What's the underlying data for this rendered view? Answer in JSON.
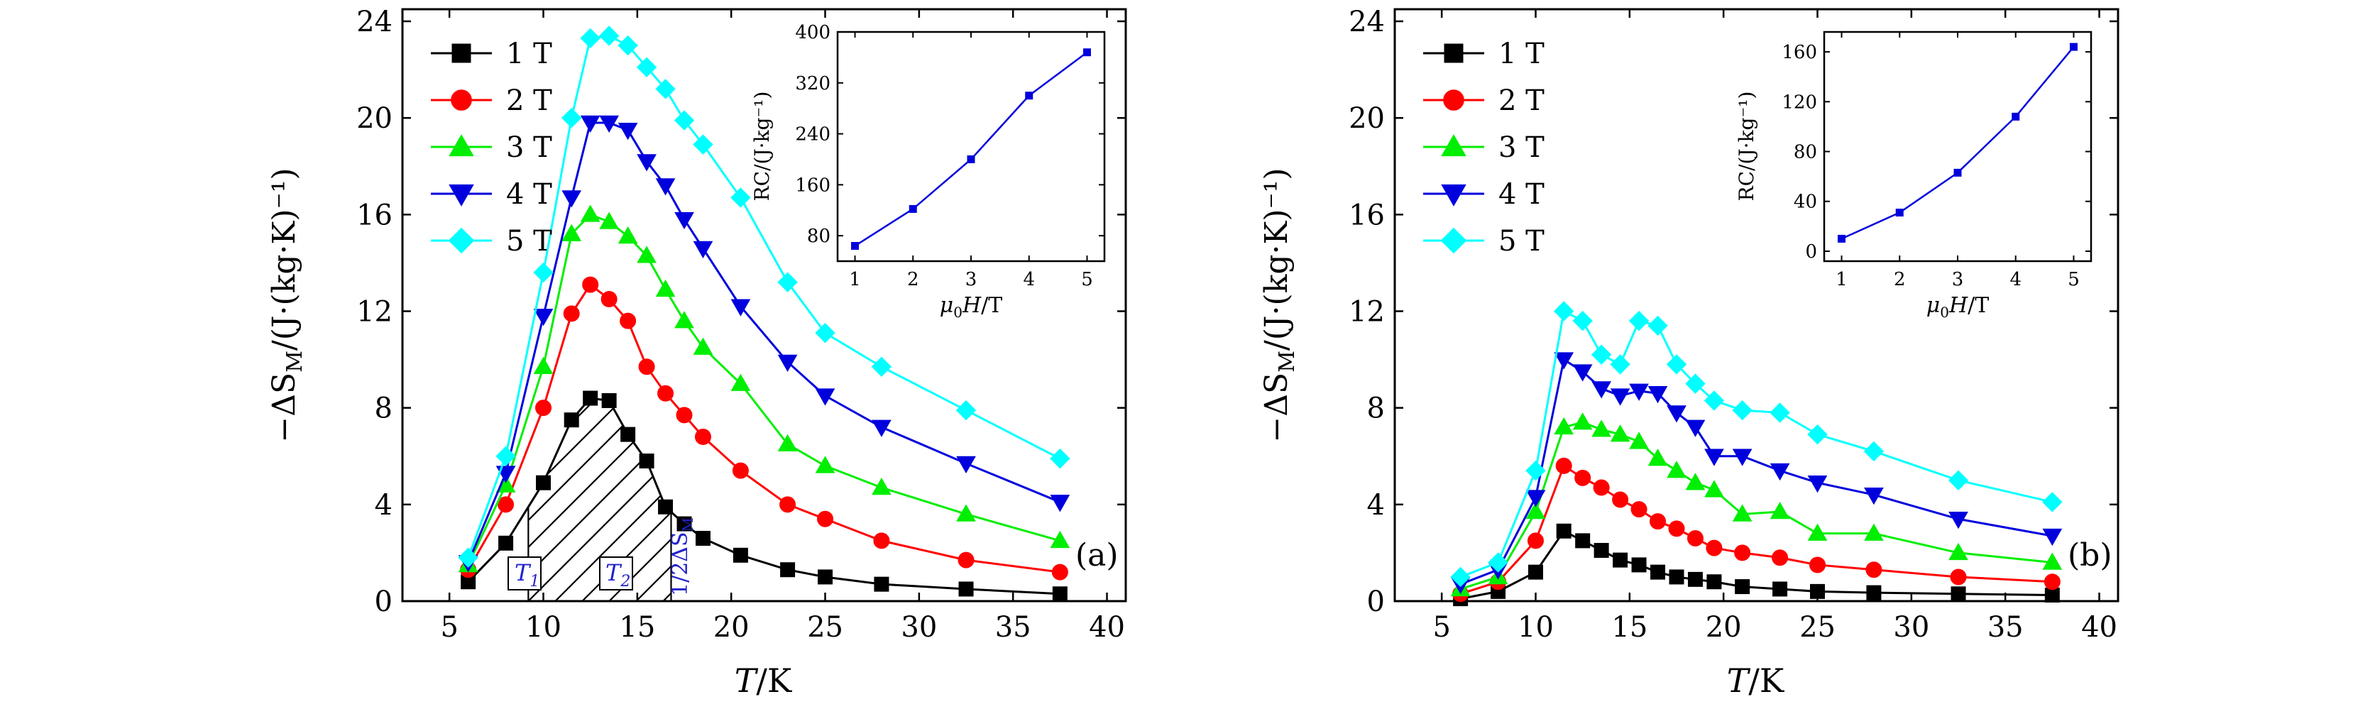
{
  "chart_data": [
    {
      "panel": "(a)",
      "type": "line",
      "xlabel_italic": "T",
      "xlabel_rest": "/K",
      "ylabel_main": "−ΔS",
      "ylabel_sub": "M",
      "ylabel_rest": "/(J·(kg·K)⁻¹)",
      "xlim": [
        2.5,
        41
      ],
      "ylim": [
        0,
        24.5
      ],
      "xticks": [
        5,
        10,
        15,
        20,
        25,
        30,
        35,
        40
      ],
      "yticks": [
        0,
        4,
        8,
        12,
        16,
        20,
        24
      ],
      "grid": false,
      "legend_position": "top-left",
      "series": [
        {
          "name": "1 T",
          "color": "#000000",
          "marker": "square",
          "x": [
            6,
            8,
            10,
            11.5,
            12.5,
            13.5,
            14.5,
            15.5,
            16.5,
            17.5,
            18.5,
            20.5,
            23,
            25,
            28,
            32.5,
            37.5
          ],
          "y": [
            0.8,
            2.4,
            4.9,
            7.5,
            8.4,
            8.3,
            6.9,
            5.8,
            3.9,
            3.2,
            2.6,
            1.9,
            1.3,
            1.0,
            0.7,
            0.5,
            0.3
          ]
        },
        {
          "name": "2 T",
          "color": "#ff0000",
          "marker": "circle",
          "x": [
            6,
            8,
            10,
            11.5,
            12.5,
            13.5,
            14.5,
            15.5,
            16.5,
            17.5,
            18.5,
            20.5,
            23,
            25,
            28,
            32.5,
            37.5
          ],
          "y": [
            1.3,
            4.0,
            8.0,
            11.9,
            13.1,
            12.5,
            11.6,
            9.7,
            8.6,
            7.7,
            6.8,
            5.4,
            4.0,
            3.4,
            2.5,
            1.7,
            1.2
          ]
        },
        {
          "name": "3 T",
          "color": "#00ee00",
          "marker": "triangle-up",
          "x": [
            6,
            8,
            10,
            11.5,
            12.5,
            13.5,
            14.5,
            15.5,
            16.5,
            17.5,
            18.5,
            20.5,
            23,
            25,
            28,
            32.5,
            37.5
          ],
          "y": [
            1.5,
            4.8,
            9.7,
            15.2,
            16.0,
            15.7,
            15.1,
            14.3,
            12.9,
            11.6,
            10.5,
            9.0,
            6.5,
            5.6,
            4.7,
            3.6,
            2.5
          ]
        },
        {
          "name": "4 T",
          "color": "#0000dd",
          "marker": "triangle-down",
          "x": [
            6,
            8,
            10,
            11.5,
            12.5,
            13.5,
            14.5,
            15.5,
            16.5,
            17.5,
            18.5,
            20.5,
            23,
            25,
            28,
            32.5,
            37.5
          ],
          "y": [
            1.6,
            5.3,
            11.8,
            16.7,
            19.8,
            19.8,
            19.5,
            18.2,
            17.2,
            15.8,
            14.6,
            12.2,
            9.9,
            8.5,
            7.2,
            5.7,
            4.1
          ]
        },
        {
          "name": "5 T",
          "color": "#00ffff",
          "marker": "diamond",
          "x": [
            6,
            8,
            10,
            11.5,
            12.5,
            13.5,
            14.5,
            15.5,
            16.5,
            17.5,
            18.5,
            20.5,
            23,
            25,
            28,
            32.5,
            37.5
          ],
          "y": [
            1.8,
            6.0,
            13.6,
            20.0,
            23.3,
            23.4,
            23.0,
            22.1,
            21.2,
            19.9,
            18.9,
            16.7,
            13.2,
            11.1,
            9.7,
            7.9,
            5.9
          ]
        }
      ],
      "annotations": {
        "hatch_x": [
          9.2,
          16.8
        ],
        "t1_label": "T",
        "t1_sub": "1",
        "t2_label": "T",
        "t2_sub": "2",
        "rotated_label": "1/2ΔS",
        "rotated_sub": "M"
      },
      "inset": {
        "type": "line",
        "xlabel_main": "μ",
        "xlabel_sub": "0",
        "xlabel_italic": "H",
        "xlabel_rest": "/T",
        "ylabel": "RC/(J·kg⁻¹)",
        "xlim": [
          0.7,
          5.3
        ],
        "ylim": [
          40,
          400
        ],
        "xticks": [
          1,
          2,
          3,
          4,
          5
        ],
        "yticks": [
          80,
          160,
          240,
          320,
          400
        ],
        "x": [
          1,
          2,
          3,
          4,
          5
        ],
        "y": [
          64,
          122,
          200,
          300,
          368
        ],
        "color": "#0000dd"
      }
    },
    {
      "panel": "(b)",
      "type": "line",
      "xlabel_italic": "T",
      "xlabel_rest": "/K",
      "ylabel_main": "−ΔS",
      "ylabel_sub": "M",
      "ylabel_rest": "/(J·(kg·K)⁻¹)",
      "xlim": [
        2.5,
        41
      ],
      "ylim": [
        0,
        24.5
      ],
      "xticks": [
        5,
        10,
        15,
        20,
        25,
        30,
        35,
        40
      ],
      "yticks": [
        0,
        4,
        8,
        12,
        16,
        20,
        24
      ],
      "grid": false,
      "legend_position": "top-left",
      "series": [
        {
          "name": "1 T",
          "color": "#000000",
          "marker": "square",
          "x": [
            6,
            8,
            10,
            11.5,
            12.5,
            13.5,
            14.5,
            15.5,
            16.5,
            17.5,
            18.5,
            19.5,
            21,
            23,
            25,
            28,
            32.5,
            37.5
          ],
          "y": [
            0.1,
            0.4,
            1.2,
            2.9,
            2.5,
            2.1,
            1.7,
            1.5,
            1.2,
            1.0,
            0.9,
            0.8,
            0.6,
            0.5,
            0.4,
            0.35,
            0.3,
            0.25
          ]
        },
        {
          "name": "2 T",
          "color": "#ff0000",
          "marker": "circle",
          "x": [
            6,
            8,
            10,
            11.5,
            12.5,
            13.5,
            14.5,
            15.5,
            16.5,
            17.5,
            18.5,
            19.5,
            21,
            23,
            25,
            28,
            32.5,
            37.5
          ],
          "y": [
            0.3,
            0.8,
            2.5,
            5.6,
            5.1,
            4.7,
            4.2,
            3.8,
            3.3,
            3.0,
            2.6,
            2.2,
            2.0,
            1.8,
            1.5,
            1.3,
            1.0,
            0.8
          ]
        },
        {
          "name": "3 T",
          "color": "#00ee00",
          "marker": "triangle-up",
          "x": [
            6,
            8,
            10,
            11.5,
            12.5,
            13.5,
            14.5,
            15.5,
            16.5,
            17.5,
            18.5,
            19.5,
            21,
            23,
            25,
            28,
            32.5,
            37.5
          ],
          "y": [
            0.5,
            1.0,
            3.7,
            7.2,
            7.4,
            7.1,
            6.9,
            6.6,
            5.9,
            5.4,
            4.9,
            4.6,
            3.6,
            3.7,
            2.8,
            2.8,
            2.0,
            1.6
          ]
        },
        {
          "name": "4 T",
          "color": "#0000dd",
          "marker": "triangle-down",
          "x": [
            6,
            8,
            10,
            11.5,
            12.5,
            13.5,
            14.5,
            15.5,
            16.5,
            17.5,
            18.5,
            19.5,
            21,
            23,
            25,
            28,
            32.5,
            37.5
          ],
          "y": [
            0.7,
            1.3,
            4.3,
            10.0,
            9.5,
            8.8,
            8.5,
            8.7,
            8.6,
            7.8,
            7.2,
            6.0,
            6.0,
            5.4,
            4.9,
            4.4,
            3.4,
            2.7
          ]
        },
        {
          "name": "5 T",
          "color": "#00ffff",
          "marker": "diamond",
          "x": [
            6,
            8,
            10,
            11.5,
            12.5,
            13.5,
            14.5,
            15.5,
            16.5,
            17.5,
            18.5,
            19.5,
            21,
            23,
            25,
            28,
            32.5,
            37.5
          ],
          "y": [
            1.0,
            1.6,
            5.4,
            12.0,
            11.6,
            10.2,
            9.8,
            11.6,
            11.4,
            9.8,
            9.0,
            8.3,
            7.9,
            7.8,
            6.9,
            6.2,
            5.0,
            4.1
          ]
        }
      ],
      "inset": {
        "type": "line",
        "xlabel_main": "μ",
        "xlabel_sub": "0",
        "xlabel_italic": "H",
        "xlabel_rest": "/T",
        "ylabel": "RC/(J·kg⁻¹)",
        "xlim": [
          0.7,
          5.3
        ],
        "ylim": [
          -8,
          176
        ],
        "xticks": [
          1,
          2,
          3,
          4,
          5
        ],
        "yticks": [
          0,
          40,
          80,
          120,
          160
        ],
        "x": [
          1,
          2,
          3,
          4,
          5
        ],
        "y": [
          10,
          31,
          63,
          108,
          164
        ],
        "color": "#0000dd"
      }
    }
  ]
}
